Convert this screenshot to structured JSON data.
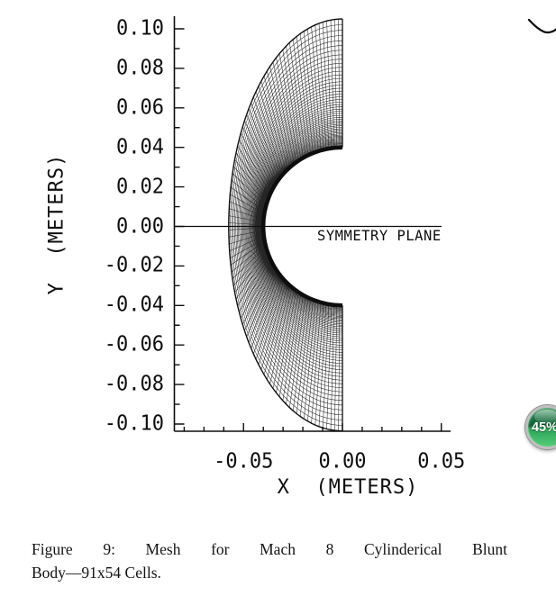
{
  "figure": {
    "caption_line1": "Figure 9: Mesh for Mach 8 Cylinderical Blunt",
    "caption_line2": "Body—91x54 Cells."
  },
  "badge": {
    "text": "45%",
    "ring_color": "#bfbfbf",
    "green_dark": "#136239",
    "green_light": "#55cc79"
  },
  "chart_data": {
    "type": "other",
    "subtype": "structured CFD body-fitted mesh plot (scanned line drawing)",
    "title": "",
    "xlabel": "X  (METERS)",
    "ylabel": "Y  (METERS)",
    "annotation": "SYMMETRY PLANE",
    "xlim": [
      -0.085,
      0.0545
    ],
    "ylim": [
      -0.1045,
      0.107
    ],
    "x_major_ticks": [
      -0.05,
      0.0,
      0.05
    ],
    "x_tick_labels": [
      "-0.05",
      "0.00",
      "0.05"
    ],
    "y_major_ticks": [
      0.1,
      0.08,
      0.06,
      0.04,
      0.02,
      0.0,
      -0.02,
      -0.04,
      -0.06,
      -0.08,
      -0.1
    ],
    "y_tick_labels": [
      "0.10",
      "0.08",
      "0.06",
      "0.04",
      "0.02",
      "0.00",
      "-0.02",
      "-0.04",
      "-0.06",
      "-0.08",
      "-0.10"
    ],
    "minor_tick_step_m": 0.01,
    "grid": false,
    "legend": false,
    "ink_color": "#0e0e0e",
    "mesh": {
      "cells_circumferential": 91,
      "cells_radial": 54,
      "body_radius_m": 0.04,
      "shock_standoff_m": 0.0575,
      "shock_top_y_m": 0.105,
      "shock_bottom_y_m": 0.1035,
      "exit_plane_x_m": 0.0,
      "radial_clustering": 2.2
    }
  }
}
